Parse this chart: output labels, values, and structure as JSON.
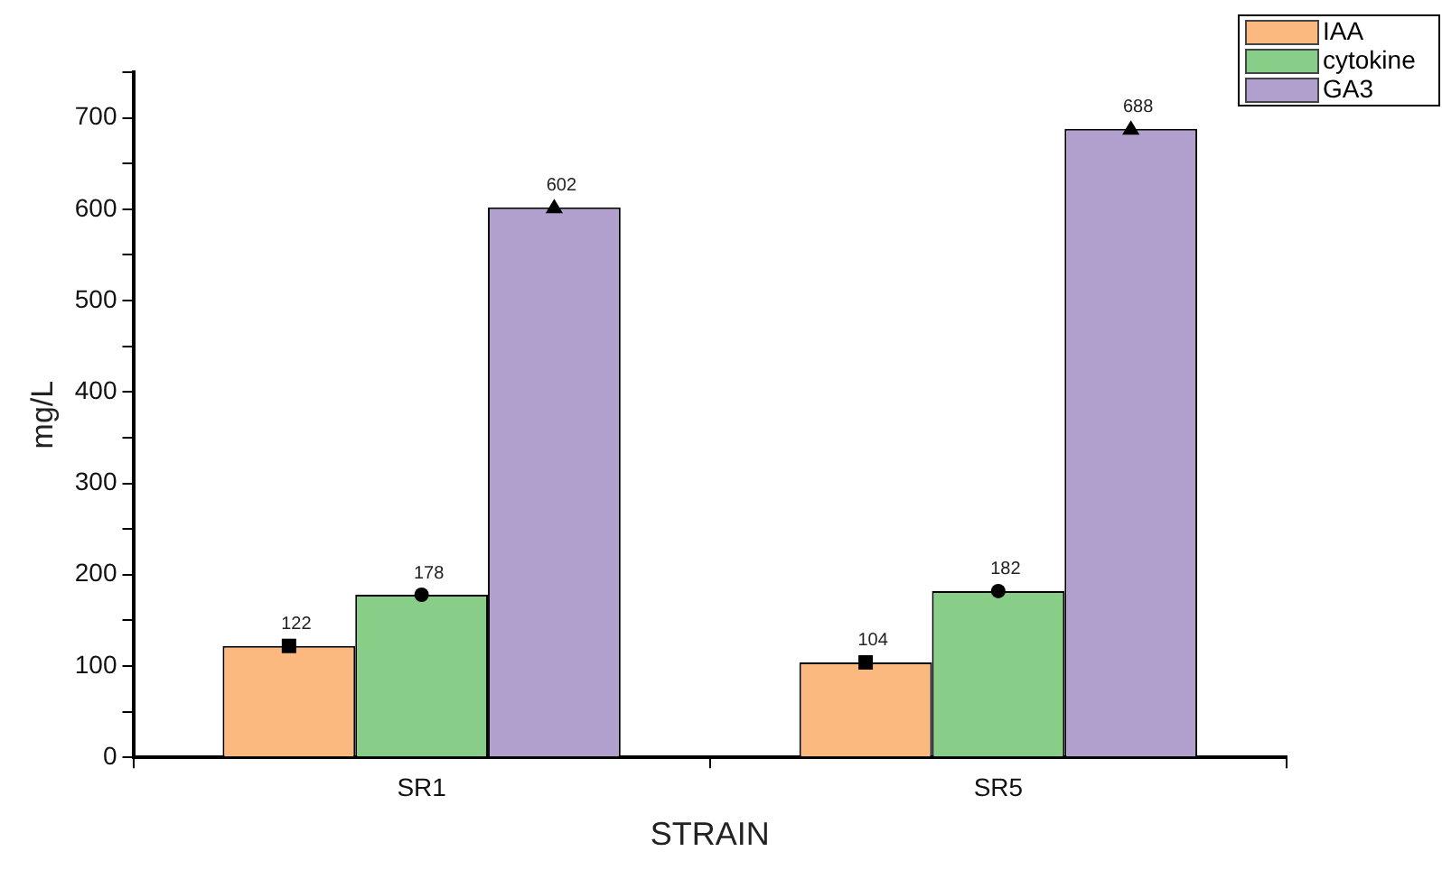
{
  "chart_data": {
    "type": "bar",
    "xlabel": "STRAIN",
    "ylabel": "mg/L",
    "categories": [
      "SR1",
      "SR5"
    ],
    "series": [
      {
        "name": "IAA",
        "color": "#fbb980",
        "values": [
          122,
          104
        ],
        "value_labels": [
          "122",
          "104"
        ]
      },
      {
        "name": "cytokine",
        "color": "#88cd88",
        "values": [
          178,
          182
        ],
        "value_labels": [
          "178",
          "182"
        ]
      },
      {
        "name": "GA3",
        "color": "#b19fcd",
        "values": [
          602,
          688
        ],
        "value_labels": [
          "602",
          "688"
        ]
      },
      {
        "type": "scatter",
        "x": [
          "SR1",
          "SR5"
        ],
        "color": "#000000",
        "values": [
          122,
          104
        ],
        "marker": "square"
      },
      {
        "type": "scatter",
        "x": [
          "SR1",
          "SR5"
        ],
        "color": "#000000",
        "values": [
          178,
          182
        ],
        "marker": "circle"
      },
      {
        "type": "scatter",
        "x": [
          "SR1",
          "SR5"
        ],
        "color": "#000000",
        "values": [
          602,
          688
        ],
        "marker": "triangle"
      }
    ],
    "ylim": [
      0,
      750
    ],
    "yticks": [
      0,
      {
        "value": 50,
        "label": null
      },
      100,
      {
        "value": 150,
        "label": null
      },
      200,
      {
        "value": 250,
        "label": null
      },
      300,
      {
        "value": 350,
        "label": null
      },
      400,
      {
        "value": 450,
        "label": null
      },
      500,
      {
        "value": 550,
        "label": null
      },
      600,
      {
        "value": 650,
        "label": null
      },
      700,
      {
        "value": 750,
        "label": null
      }
    ],
    "grid": false,
    "legend": "top right"
  }
}
